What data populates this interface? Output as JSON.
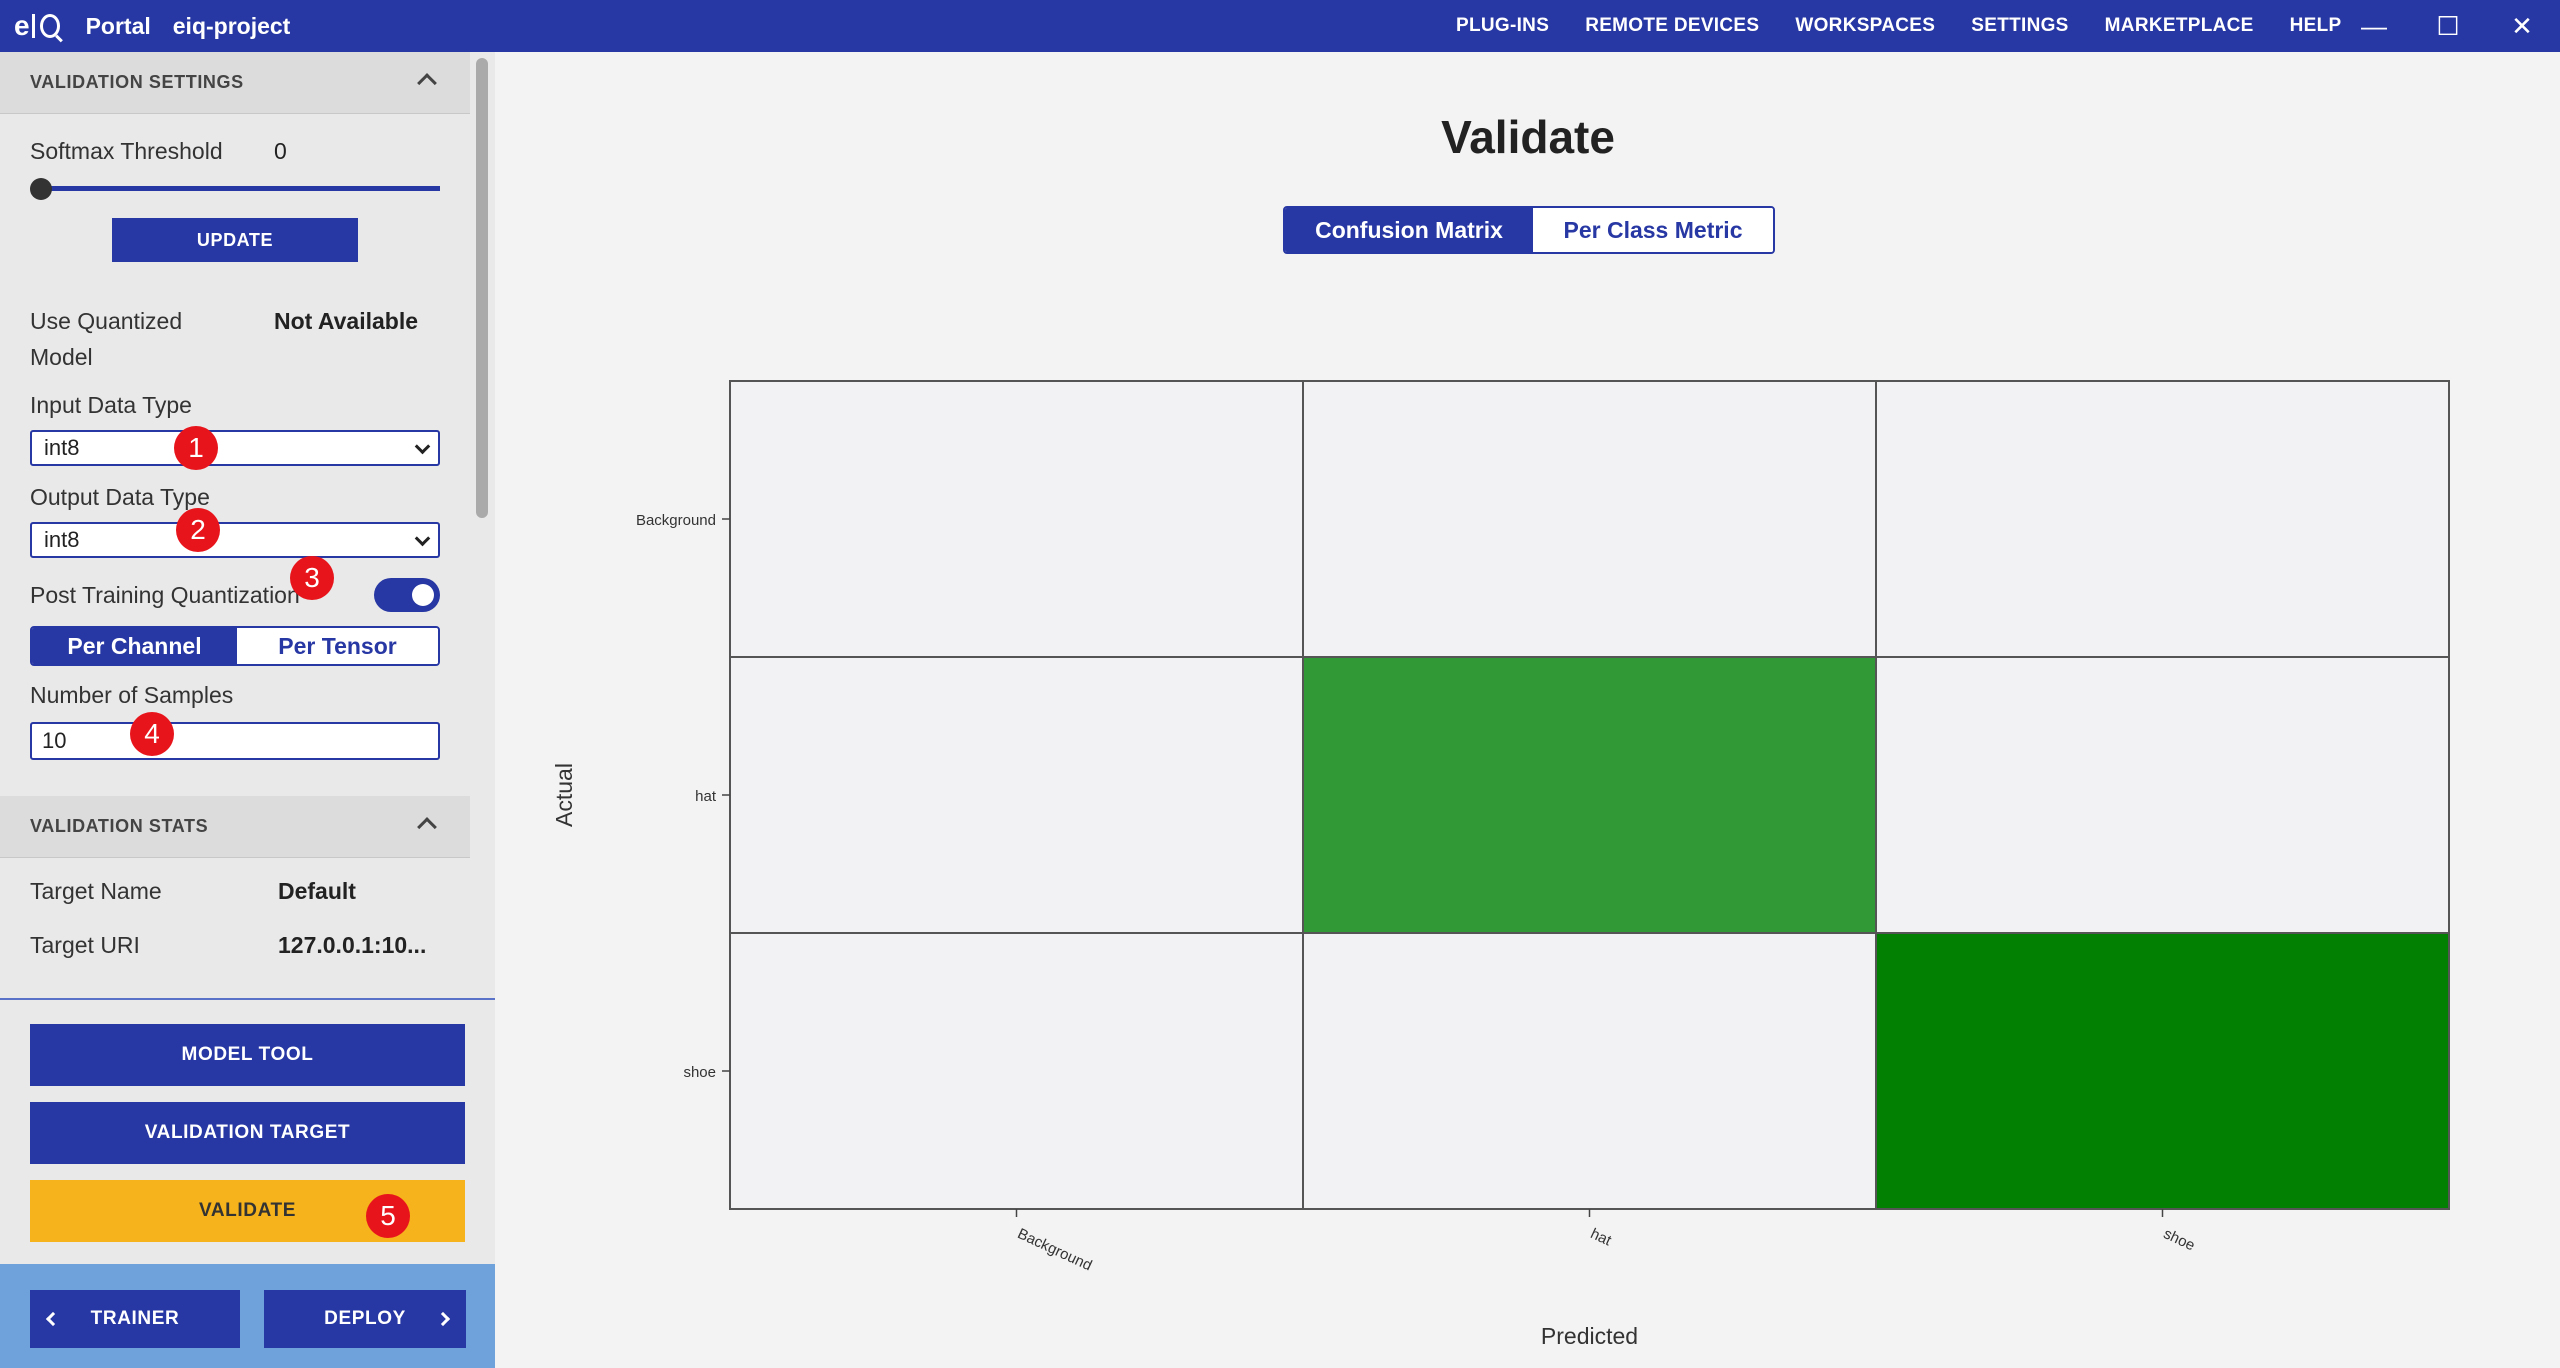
{
  "app": {
    "logo": "eIQ",
    "title": "Portal",
    "project": "eiq-project"
  },
  "nav": [
    "PLUG-INS",
    "REMOTE DEVICES",
    "WORKSPACES",
    "SETTINGS",
    "MARKETPLACE",
    "HELP"
  ],
  "window_controls": {
    "minimize": "—",
    "maximize": "☐",
    "close": "✕"
  },
  "sidebar": {
    "validation_settings": {
      "header": "VALIDATION SETTINGS",
      "softmax_label": "Softmax Threshold",
      "softmax_value": "0",
      "softmax_level": 0,
      "update_button": "UPDATE",
      "use_quantized_label_1": "Use Quantized",
      "use_quantized_label_2": "Model",
      "use_quantized_value": "Not Available",
      "input_type_label": "Input Data Type",
      "input_type_value": "int8",
      "output_type_label": "Output Data Type",
      "output_type_value": "int8",
      "ptq_label": "Post Training Quantization",
      "ptq_enabled": true,
      "per_channel": "Per Channel",
      "per_tensor": "Per Tensor",
      "samples_label": "Number of Samples",
      "samples_value": "10"
    },
    "validation_stats": {
      "header": "VALIDATION STATS",
      "target_name_label": "Target Name",
      "target_name_value": "Default",
      "target_uri_label": "Target URI",
      "target_uri_value": "127.0.0.1:10..."
    },
    "buttons": {
      "model_tool": "MODEL TOOL",
      "validation_target": "VALIDATION TARGET",
      "validate": "VALIDATE",
      "trainer": "TRAINER",
      "deploy": "DEPLOY"
    },
    "badges": [
      "1",
      "2",
      "3",
      "4",
      "5"
    ]
  },
  "main": {
    "title": "Validate",
    "tabs": [
      "Confusion Matrix",
      "Per Class Metric"
    ],
    "active_tab": "Confusion Matrix"
  },
  "chart_data": {
    "type": "heatmap",
    "title": "",
    "xlabel": "Predicted",
    "ylabel": "Actual",
    "x_categories": [
      "Background",
      "hat",
      "shoe"
    ],
    "y_categories": [
      "Background",
      "hat",
      "shoe"
    ],
    "cells": [
      {
        "actual": "Background",
        "predicted": "Background",
        "intensity": 0,
        "color": "#f2f2f4"
      },
      {
        "actual": "Background",
        "predicted": "hat",
        "intensity": 0,
        "color": "#f2f2f4"
      },
      {
        "actual": "Background",
        "predicted": "shoe",
        "intensity": 0,
        "color": "#f2f2f4"
      },
      {
        "actual": "hat",
        "predicted": "Background",
        "intensity": 0,
        "color": "#f2f2f4"
      },
      {
        "actual": "hat",
        "predicted": "hat",
        "intensity": 0.8,
        "color": "#319a37"
      },
      {
        "actual": "hat",
        "predicted": "shoe",
        "intensity": 0,
        "color": "#f2f2f4"
      },
      {
        "actual": "shoe",
        "predicted": "Background",
        "intensity": 0,
        "color": "#f2f2f4"
      },
      {
        "actual": "shoe",
        "predicted": "hat",
        "intensity": 0,
        "color": "#f2f2f4"
      },
      {
        "actual": "shoe",
        "predicted": "shoe",
        "intensity": 1,
        "color": "#018001"
      }
    ]
  },
  "colors": {
    "primary": "#2737a3",
    "accent_yellow": "#f6b31b",
    "badge_red": "#e8141b",
    "footer_blue": "#6fa2da"
  }
}
